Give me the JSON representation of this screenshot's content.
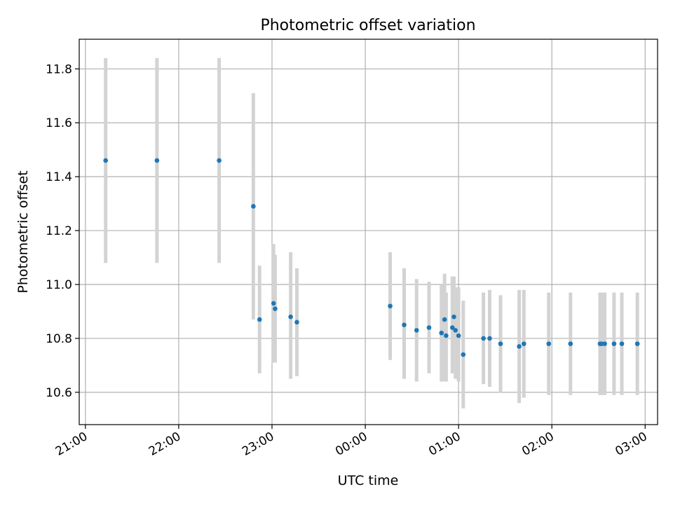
{
  "chart_data": {
    "type": "scatter",
    "title": "Photometric offset variation",
    "xlabel": "UTC time",
    "ylabel": "Photometric offset",
    "x_unit": "UTC time (night spanning two dates)",
    "xlim": [
      "20:56",
      "03:08"
    ],
    "ylim": [
      10.48,
      11.91
    ],
    "xticks": [
      "21:00",
      "22:00",
      "23:00",
      "00:00",
      "01:00",
      "02:00",
      "03:00"
    ],
    "yticks": [
      10.6,
      10.8,
      11.0,
      11.2,
      11.4,
      11.6,
      11.8
    ],
    "ytick_labels": [
      "10.6",
      "10.8",
      "11.0",
      "11.2",
      "11.4",
      "11.6",
      "11.8"
    ],
    "grid": true,
    "legend": "none",
    "colors": {
      "point": "#1f77b4",
      "errorbar": "#d3d3d3",
      "grid": "#b0b0b0",
      "axes": "#000000"
    },
    "series": [
      {
        "points": [
          {
            "t": "21:13",
            "y": 11.46,
            "err_low": 0.38,
            "err_high": 0.38
          },
          {
            "t": "21:46",
            "y": 11.46,
            "err_low": 0.38,
            "err_high": 0.38
          },
          {
            "t": "22:26",
            "y": 11.46,
            "err_low": 0.38,
            "err_high": 0.38
          },
          {
            "t": "22:48",
            "y": 11.29,
            "err_low": 0.42,
            "err_high": 0.42
          },
          {
            "t": "22:52",
            "y": 10.87,
            "err_low": 0.2,
            "err_high": 0.2
          },
          {
            "t": "23:01",
            "y": 10.93,
            "err_low": 0.22,
            "err_high": 0.22
          },
          {
            "t": "23:02",
            "y": 10.91,
            "err_low": 0.2,
            "err_high": 0.2
          },
          {
            "t": "23:12",
            "y": 10.88,
            "err_low": 0.23,
            "err_high": 0.24
          },
          {
            "t": "23:16",
            "y": 10.86,
            "err_low": 0.2,
            "err_high": 0.2
          },
          {
            "t": "00:16",
            "y": 10.92,
            "err_low": 0.2,
            "err_high": 0.2
          },
          {
            "t": "00:25",
            "y": 10.85,
            "err_low": 0.2,
            "err_high": 0.21
          },
          {
            "t": "00:33",
            "y": 10.83,
            "err_low": 0.19,
            "err_high": 0.19
          },
          {
            "t": "00:41",
            "y": 10.84,
            "err_low": 0.17,
            "err_high": 0.17
          },
          {
            "t": "00:49",
            "y": 10.82,
            "err_low": 0.18,
            "err_high": 0.18
          },
          {
            "t": "00:51",
            "y": 10.87,
            "err_low": 0.23,
            "err_high": 0.17
          },
          {
            "t": "00:52",
            "y": 10.81,
            "err_low": 0.17,
            "err_high": 0.16
          },
          {
            "t": "00:56",
            "y": 10.84,
            "err_low": 0.17,
            "err_high": 0.19
          },
          {
            "t": "00:57",
            "y": 10.88,
            "err_low": 0.21,
            "err_high": 0.15
          },
          {
            "t": "00:58",
            "y": 10.83,
            "err_low": 0.18,
            "err_high": 0.16
          },
          {
            "t": "01:00",
            "y": 10.81,
            "err_low": 0.17,
            "err_high": 0.18
          },
          {
            "t": "01:03",
            "y": 10.74,
            "err_low": 0.2,
            "err_high": 0.2
          },
          {
            "t": "01:16",
            "y": 10.8,
            "err_low": 0.17,
            "err_high": 0.17
          },
          {
            "t": "01:20",
            "y": 10.8,
            "err_low": 0.18,
            "err_high": 0.18
          },
          {
            "t": "01:27",
            "y": 10.78,
            "err_low": 0.18,
            "err_high": 0.18
          },
          {
            "t": "01:39",
            "y": 10.77,
            "err_low": 0.21,
            "err_high": 0.21
          },
          {
            "t": "01:42",
            "y": 10.78,
            "err_low": 0.2,
            "err_high": 0.2
          },
          {
            "t": "01:58",
            "y": 10.78,
            "err_low": 0.19,
            "err_high": 0.19
          },
          {
            "t": "02:12",
            "y": 10.78,
            "err_low": 0.19,
            "err_high": 0.19
          },
          {
            "t": "02:31",
            "y": 10.78,
            "err_low": 0.19,
            "err_high": 0.19
          },
          {
            "t": "02:32",
            "y": 10.78,
            "err_low": 0.19,
            "err_high": 0.19
          },
          {
            "t": "02:34",
            "y": 10.78,
            "err_low": 0.19,
            "err_high": 0.19
          },
          {
            "t": "02:40",
            "y": 10.78,
            "err_low": 0.19,
            "err_high": 0.19
          },
          {
            "t": "02:45",
            "y": 10.78,
            "err_low": 0.19,
            "err_high": 0.19
          },
          {
            "t": "02:55",
            "y": 10.78,
            "err_low": 0.19,
            "err_high": 0.19
          }
        ]
      }
    ]
  }
}
